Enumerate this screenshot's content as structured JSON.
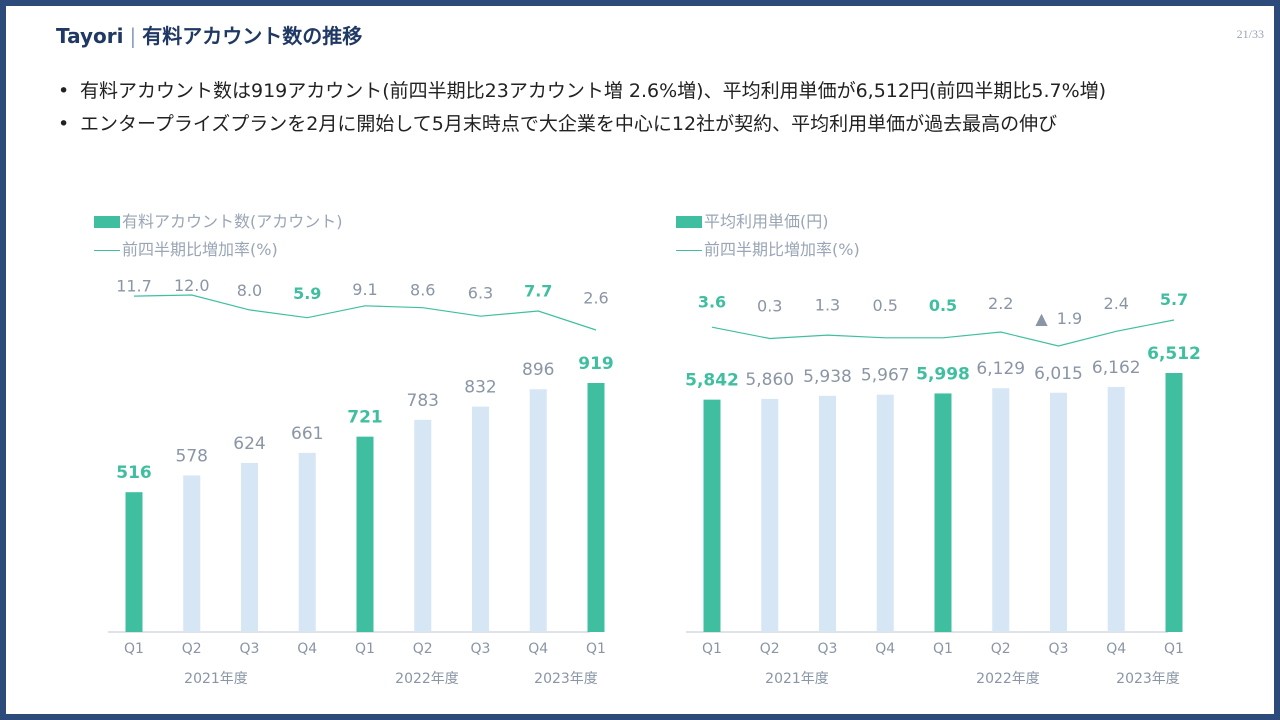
{
  "header": {
    "brand": "Tayori",
    "separator": "|",
    "title": "有料アカウント数の推移",
    "page": "21/33"
  },
  "bullets": [
    {
      "symbol": "•",
      "text": "有料アカウント数は919アカウント(前四半期比23アカウント増 2.6%増)、平均利用単価が6,512円(前四半期比5.7%増)"
    },
    {
      "symbol": "•",
      "text": "エンタープライズプランを2月に開始して5月末時点で大企業を中心に12社が契約、平均利用単価が過去最高の伸び"
    }
  ],
  "colors": {
    "highlight": "#40bfa0",
    "normal_bar": "#d6e6f5",
    "line": "#40bfa0",
    "label": "#8a95a5",
    "frame": "#2c4a7a",
    "marker": "#7f8a9a"
  },
  "chart_data": [
    {
      "type": "bar",
      "legend_bar": "有料アカウント数(アカウント)",
      "legend_line": "前四半期比増加率(%)",
      "categories": [
        "Q1",
        "Q2",
        "Q3",
        "Q4",
        "Q1",
        "Q2",
        "Q3",
        "Q4",
        "Q1"
      ],
      "year_groups": [
        {
          "label": "2021年度",
          "start": 0,
          "end": 3
        },
        {
          "label": "2022年度",
          "start": 4,
          "end": 7
        },
        {
          "label": "2023年度",
          "start": 8,
          "end": 8
        }
      ],
      "values": [
        516,
        578,
        624,
        661,
        721,
        783,
        832,
        896,
        919
      ],
      "value_labels": [
        "516",
        "578",
        "624",
        "661",
        "721",
        "783",
        "832",
        "896",
        "919"
      ],
      "highlight": [
        true,
        false,
        false,
        false,
        true,
        false,
        false,
        false,
        true
      ],
      "ylim": [
        0,
        1000
      ],
      "growth_rate": {
        "name": "前四半期比増加率(%)",
        "values": [
          11.7,
          12.0,
          8.0,
          5.9,
          9.1,
          8.6,
          6.3,
          7.7,
          2.6
        ],
        "labels": [
          "11.7",
          "12.0",
          "8.0",
          "5.9",
          "9.1",
          "8.6",
          "6.3",
          "7.7",
          "2.6"
        ],
        "highlight": [
          false,
          false,
          false,
          true,
          false,
          false,
          false,
          true,
          false
        ],
        "negative": [
          false,
          false,
          false,
          false,
          false,
          false,
          false,
          false,
          false
        ],
        "ylim": [
          -15,
          30
        ]
      }
    },
    {
      "type": "bar",
      "legend_bar": "平均利用単価(円)",
      "legend_line": "前四半期比増加率(%)",
      "categories": [
        "Q1",
        "Q2",
        "Q3",
        "Q4",
        "Q1",
        "Q2",
        "Q3",
        "Q4",
        "Q1"
      ],
      "year_groups": [
        {
          "label": "2021年度",
          "start": 0,
          "end": 3
        },
        {
          "label": "2022年度",
          "start": 4,
          "end": 7
        },
        {
          "label": "2023年度",
          "start": 8,
          "end": 8
        }
      ],
      "values": [
        5842,
        5860,
        5938,
        5967,
        5998,
        6129,
        6015,
        6162,
        6512
      ],
      "value_labels": [
        "5,842",
        "5,860",
        "5,938",
        "5,967",
        "5,998",
        "6,129",
        "6,015",
        "6,162",
        "6,512"
      ],
      "highlight": [
        true,
        false,
        false,
        false,
        true,
        false,
        false,
        false,
        true
      ],
      "ylim": [
        0,
        6850
      ],
      "growth_rate": {
        "name": "前四半期比増加率(%)",
        "values": [
          3.6,
          0.3,
          1.3,
          0.5,
          0.5,
          2.2,
          -1.9,
          2.4,
          5.7
        ],
        "labels": [
          "3.6",
          "0.3",
          "1.3",
          "0.5",
          "0.5",
          "2.2",
          "1.9",
          "2.4",
          "5.7"
        ],
        "highlight": [
          true,
          false,
          false,
          false,
          true,
          false,
          false,
          false,
          true
        ],
        "negative": [
          false,
          false,
          false,
          false,
          false,
          false,
          true,
          false,
          false
        ],
        "negative_marker": "▲",
        "ylim": [
          -6,
          7
        ]
      }
    }
  ]
}
